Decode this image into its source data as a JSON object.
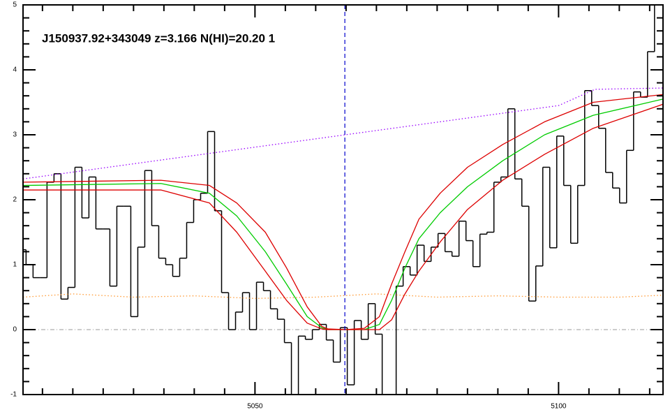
{
  "chart_data": {
    "type": "line",
    "title": "J150937.92+343049 z=3.166 N(HI)=20.20 1",
    "xlim": [
      5011.8,
      5117.2
    ],
    "ylim": [
      -1,
      5
    ],
    "xticks": [
      5050,
      5100
    ],
    "yticks": [
      -1,
      0,
      1,
      2,
      3,
      4,
      5
    ],
    "xminorticks": [
      5015,
      5020,
      5025,
      5030,
      5035,
      5040,
      5045,
      5055,
      5060,
      5065,
      5070,
      5075,
      5080,
      5085,
      5090,
      5095,
      5105,
      5110,
      5115
    ],
    "yminorticks": [
      -0.8,
      -0.6,
      -0.4,
      -0.2,
      0.2,
      0.4,
      0.6,
      0.8,
      1.2,
      1.4,
      1.6,
      1.8,
      2.2,
      2.4,
      2.6,
      2.8,
      3.2,
      3.4,
      3.6,
      3.8,
      4.2,
      4.4,
      4.6,
      4.8
    ],
    "zero_line": true,
    "vline": 5064.8,
    "vline_color": "#0000cc",
    "series": [
      {
        "type": "step",
        "color": "#000000",
        "bins": [
          5011.15,
          5012.3,
          5013.45,
          5014.6,
          5015.75,
          5016.9,
          5018.05,
          5019.2,
          5020.35,
          5021.5,
          5022.65,
          5023.8,
          5024.95,
          5026.1,
          5027.25,
          5028.4,
          5029.55,
          5030.7,
          5031.85,
          5033.0,
          5034.15,
          5035.3,
          5036.45,
          5037.6,
          5038.75,
          5039.9,
          5041.05,
          5042.2,
          5043.35,
          5044.5,
          5045.65,
          5046.8,
          5047.95,
          5049.1,
          5050.25,
          5051.4,
          5052.55,
          5053.7,
          5054.85,
          5056.0,
          5057.15,
          5058.3,
          5059.45,
          5060.6,
          5061.75,
          5062.9,
          5064.05,
          5065.2,
          5066.35,
          5067.5,
          5068.65,
          5069.8,
          5070.95,
          5072.1,
          5073.25,
          5074.4,
          5075.55,
          5076.7,
          5077.85,
          5079.0,
          5080.15,
          5081.3,
          5082.45,
          5083.6,
          5084.75,
          5085.9,
          5087.05,
          5088.2,
          5089.35,
          5090.5,
          5091.65,
          5092.8,
          5093.95,
          5095.1,
          5096.25,
          5097.4,
          5098.55,
          5099.7,
          5100.85,
          5102.0,
          5103.15,
          5104.3,
          5105.45,
          5106.6,
          5107.75,
          5108.9,
          5110.05,
          5111.2,
          5112.35,
          5113.5,
          5114.65,
          5115.8,
          5116.95
        ],
        "values": [
          1.23,
          1.0,
          0.8,
          0.8,
          2.27,
          2.4,
          0.47,
          0.65,
          2.5,
          1.72,
          2.35,
          1.55,
          1.55,
          0.67,
          1.9,
          1.9,
          0.2,
          1.27,
          2.45,
          1.6,
          1.1,
          1.0,
          0.82,
          1.1,
          1.65,
          2.0,
          2.1,
          3.05,
          1.83,
          0.57,
          0.0,
          0.27,
          0.57,
          0.0,
          0.73,
          0.6,
          0.32,
          0.16,
          -0.2,
          -1.1,
          -0.1,
          -0.15,
          0.0,
          0.08,
          -0.16,
          -0.5,
          0.03,
          -0.85,
          0.14,
          -0.15,
          0.4,
          -0.07,
          -1.0,
          -1.2,
          0.67,
          0.97,
          0.84,
          1.3,
          1.05,
          1.27,
          1.48,
          1.2,
          1.13,
          1.67,
          1.37,
          0.97,
          1.47,
          1.5,
          2.27,
          2.35,
          3.4,
          2.32,
          1.9,
          0.44,
          0.98,
          2.5,
          1.26,
          2.98,
          2.22,
          1.33,
          2.22,
          3.68,
          3.45,
          3.1,
          2.42,
          2.18,
          1.95,
          2.76,
          3.66,
          3.58,
          4.28,
          5.2
        ]
      },
      {
        "color": "#9900ff",
        "dash": "dotted",
        "x": [
          5011.8,
          5100,
          5106,
          5117.2
        ],
        "values": [
          2.32,
          3.45,
          3.7,
          3.72
        ]
      },
      {
        "color": "#ff9933",
        "dash": "dotted",
        "x": [
          5011.8,
          5020,
          5030,
          5040,
          5050,
          5060,
          5070,
          5080,
          5090,
          5100,
          5110,
          5117.2
        ],
        "values": [
          0.5,
          0.55,
          0.5,
          0.52,
          0.48,
          0.5,
          0.55,
          0.5,
          0.52,
          0.5,
          0.5,
          0.53
        ]
      },
      {
        "color": "#00cc00",
        "x": [
          5011.8,
          5034.5,
          5042.5,
          5047,
          5051.7,
          5055.2,
          5058.6,
          5061,
          5062,
          5065,
          5068,
          5070.5,
          5072.5,
          5074.7,
          5077,
          5080.5,
          5085,
          5090.8,
          5097.7,
          5105.7,
          5117.2
        ],
        "values": [
          2.22,
          2.25,
          2.1,
          1.75,
          1.2,
          0.7,
          0.2,
          0.03,
          0,
          0,
          0,
          0.08,
          0.45,
          0.95,
          1.4,
          1.8,
          2.2,
          2.6,
          3.0,
          3.3,
          3.55
        ]
      },
      {
        "color": "#dd0000",
        "x": [
          5011.8,
          5034.5,
          5042.5,
          5047,
          5051.7,
          5055.2,
          5058.6,
          5061,
          5062,
          5065,
          5068,
          5070.5,
          5072.5,
          5074.7,
          5077,
          5080.5,
          5085,
          5090.8,
          5097.7,
          5105.7,
          5117.2
        ],
        "values": [
          2.27,
          2.3,
          2.22,
          1.95,
          1.5,
          0.95,
          0.35,
          0.05,
          0.01,
          0,
          0.02,
          0.2,
          0.7,
          1.2,
          1.7,
          2.1,
          2.5,
          2.85,
          3.2,
          3.5,
          3.62
        ]
      },
      {
        "color": "#dd0000",
        "x": [
          5011.8,
          5034.5,
          5042.5,
          5047,
          5051.7,
          5055.2,
          5058.6,
          5061,
          5062,
          5065,
          5068,
          5070.5,
          5072.5,
          5074.7,
          5077,
          5080.5,
          5085,
          5090.8,
          5097.7,
          5105.7,
          5117.2
        ],
        "values": [
          2.15,
          2.15,
          1.95,
          1.5,
          0.9,
          0.45,
          0.1,
          0.01,
          0,
          0,
          0,
          0,
          0.15,
          0.55,
          0.9,
          1.35,
          1.85,
          2.3,
          2.7,
          3.1,
          3.47
        ]
      }
    ]
  }
}
